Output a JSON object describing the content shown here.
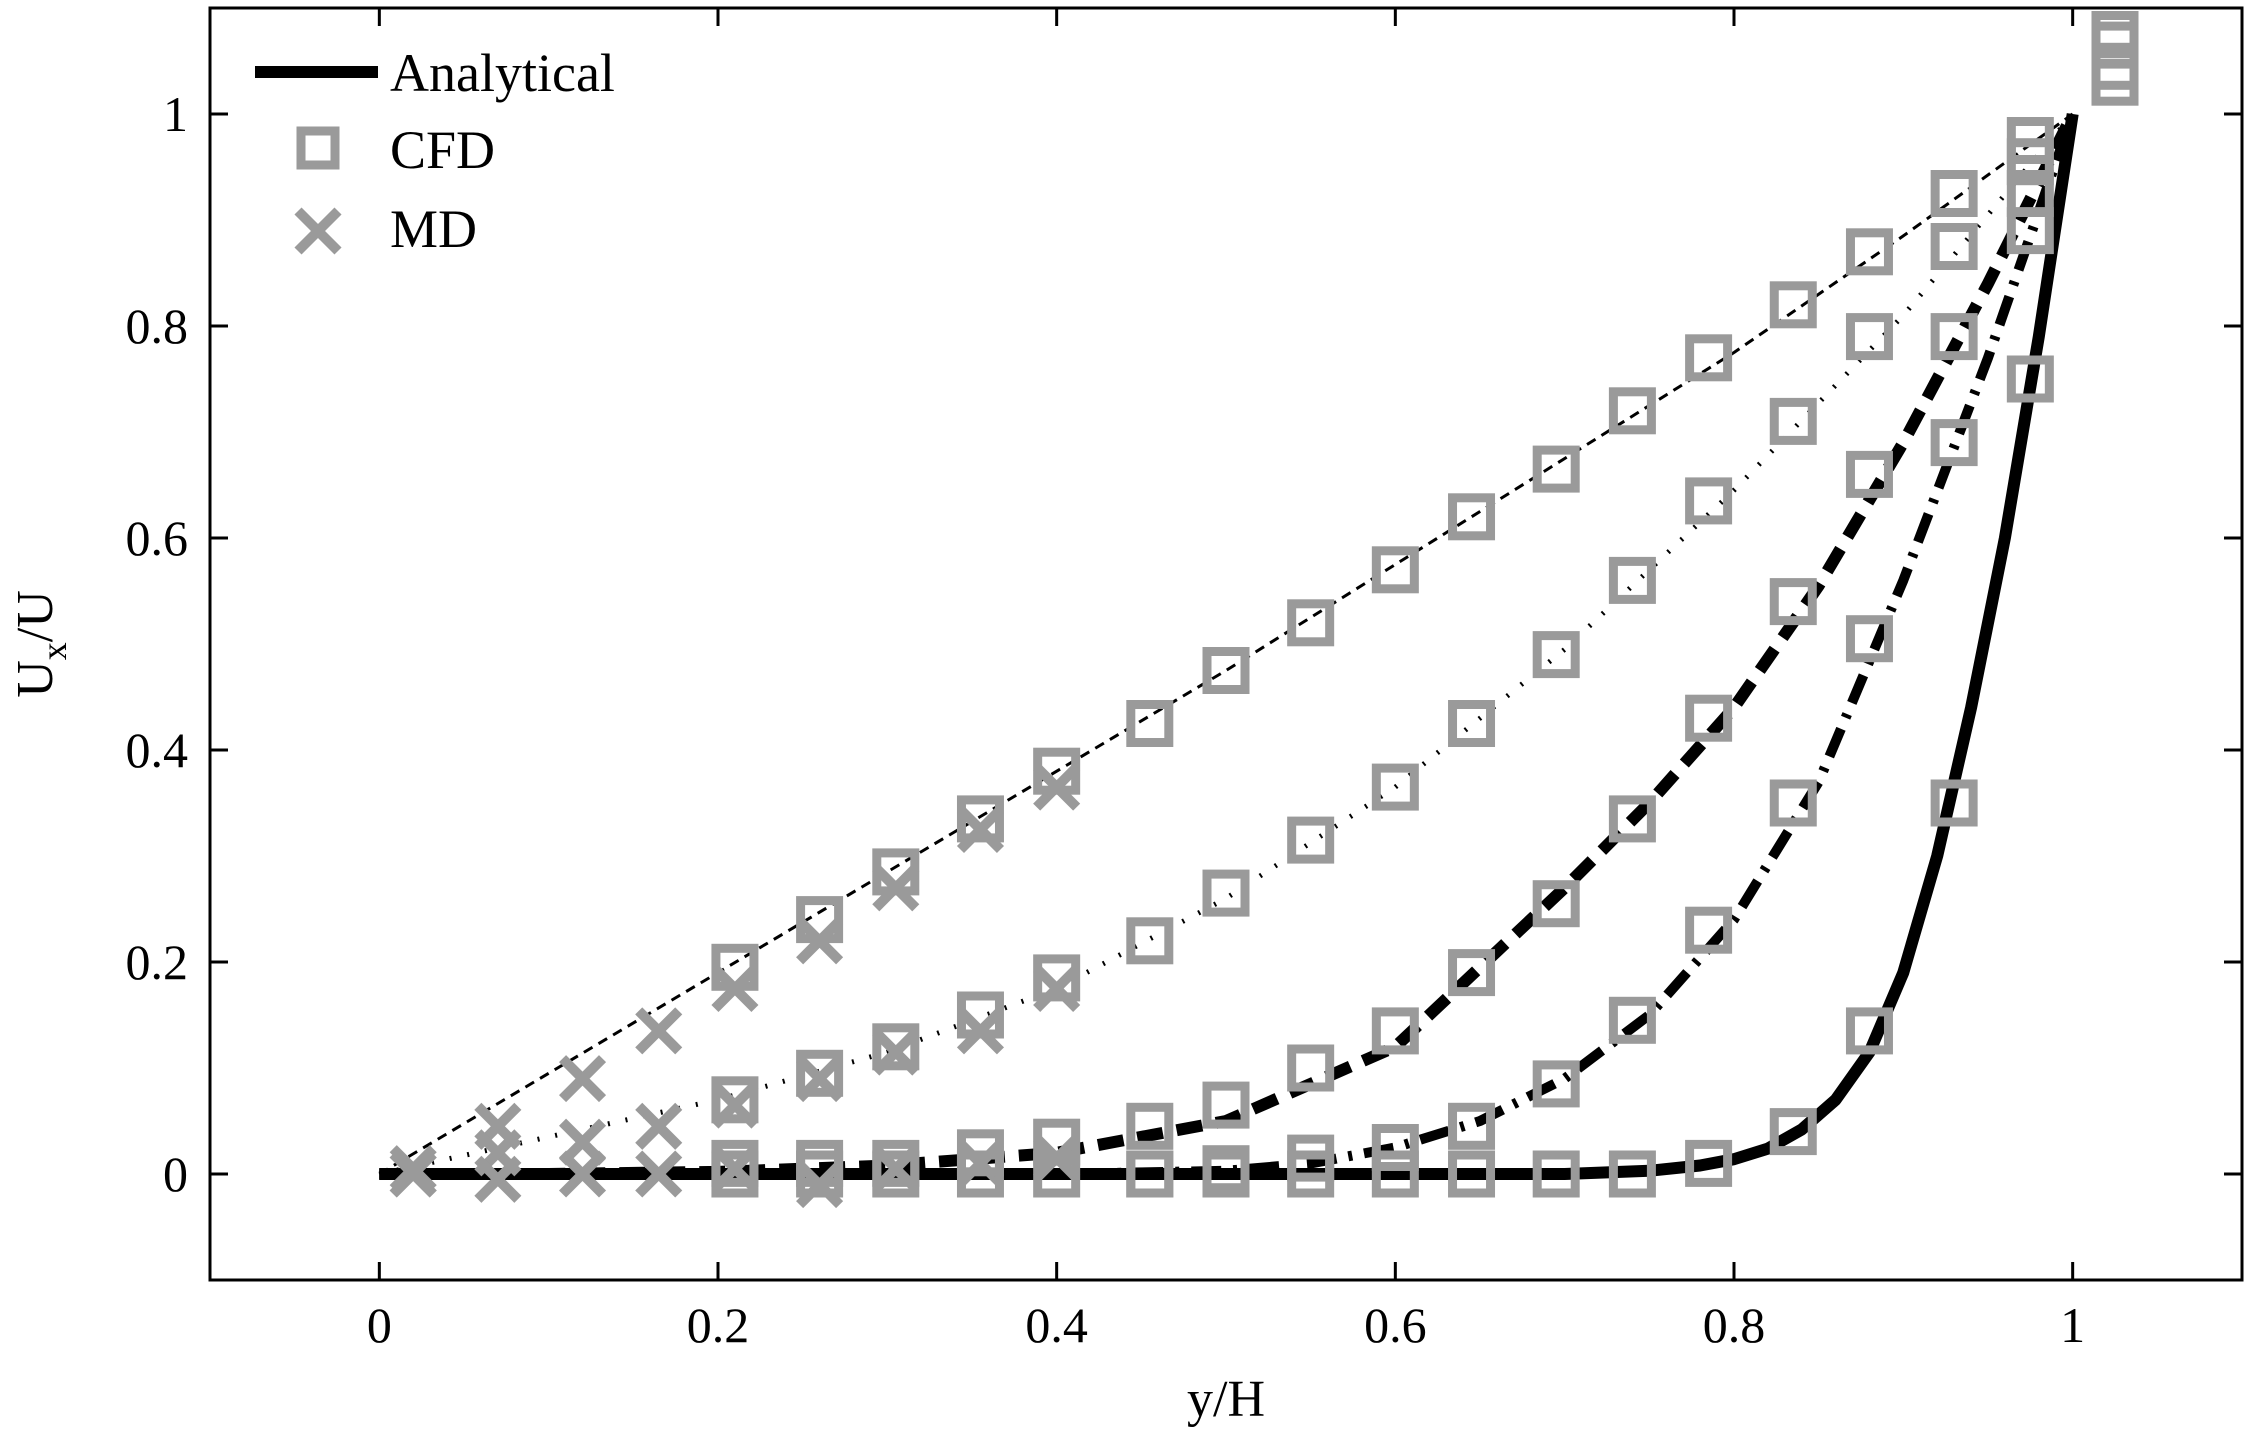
{
  "chart_data": {
    "type": "line",
    "xlabel": "y/H",
    "ylabel_main": "U",
    "ylabel_sub": "x",
    "ylabel_tail": "/U",
    "xlim": [
      -0.1,
      1.1
    ],
    "ylim": [
      -0.1,
      1.1
    ],
    "xticks": [
      0,
      0.2,
      0.4,
      0.6,
      0.8,
      1
    ],
    "xtick_labels": [
      "0",
      "0.2",
      "0.4",
      "0.6",
      "0.8",
      "1"
    ],
    "yticks": [
      0,
      0.2,
      0.4,
      0.6,
      0.8,
      1
    ],
    "ytick_labels": [
      "0",
      "0.2",
      "0.4",
      "0.6",
      "0.8",
      "1"
    ],
    "grid": false,
    "legend": {
      "placement": "top-left",
      "entries": [
        {
          "label": "Analytical",
          "marker": "line",
          "color": "#000000"
        },
        {
          "label": "CFD",
          "marker": "square",
          "color": "#9a9a9a"
        },
        {
          "label": "MD",
          "marker": "x",
          "color": "#9a9a9a"
        }
      ]
    },
    "analytical_curves": [
      {
        "style": "thin-dashed",
        "x": [
          0,
          0.1,
          0.2,
          0.3,
          0.4,
          0.5,
          0.6,
          0.7,
          0.8,
          0.9,
          1.0
        ],
        "y": [
          0,
          0.095,
          0.19,
          0.285,
          0.38,
          0.475,
          0.575,
          0.675,
          0.775,
          0.885,
          1.0
        ]
      },
      {
        "style": "dotted",
        "x": [
          0,
          0.1,
          0.2,
          0.3,
          0.4,
          0.5,
          0.6,
          0.7,
          0.8,
          0.9,
          1.0
        ],
        "y": [
          0,
          0.035,
          0.07,
          0.115,
          0.175,
          0.26,
          0.365,
          0.495,
          0.645,
          0.81,
          1.0
        ]
      },
      {
        "style": "thick-dashed",
        "x": [
          0,
          0.1,
          0.2,
          0.3,
          0.4,
          0.5,
          0.6,
          0.7,
          0.75,
          0.8,
          0.85,
          0.9,
          0.95,
          1.0
        ],
        "y": [
          0,
          0.0,
          0.002,
          0.008,
          0.02,
          0.05,
          0.12,
          0.27,
          0.35,
          0.44,
          0.555,
          0.69,
          0.84,
          1.0
        ]
      },
      {
        "style": "thick-dash-dot",
        "x": [
          0,
          0.2,
          0.4,
          0.5,
          0.55,
          0.6,
          0.65,
          0.7,
          0.75,
          0.8,
          0.85,
          0.9,
          0.95,
          1.0
        ],
        "y": [
          0,
          0,
          0,
          0.003,
          0.01,
          0.025,
          0.05,
          0.09,
          0.15,
          0.24,
          0.37,
          0.56,
          0.77,
          1.0
        ]
      },
      {
        "style": "solid",
        "x": [
          0,
          0.2,
          0.4,
          0.6,
          0.7,
          0.75,
          0.78,
          0.8,
          0.82,
          0.84,
          0.86,
          0.88,
          0.9,
          0.92,
          0.94,
          0.96,
          0.98,
          1.0
        ],
        "y": [
          0,
          0,
          0,
          0,
          0.0,
          0.003,
          0.008,
          0.014,
          0.024,
          0.042,
          0.07,
          0.115,
          0.19,
          0.3,
          0.44,
          0.6,
          0.79,
          1.0
        ]
      }
    ],
    "cfd_points": [
      [
        0.21,
        0.195
      ],
      [
        0.26,
        0.24
      ],
      [
        0.305,
        0.285
      ],
      [
        0.355,
        0.335
      ],
      [
        0.4,
        0.38
      ],
      [
        0.455,
        0.425
      ],
      [
        0.5,
        0.475
      ],
      [
        0.55,
        0.52
      ],
      [
        0.6,
        0.57
      ],
      [
        0.645,
        0.62
      ],
      [
        0.695,
        0.665
      ],
      [
        0.74,
        0.72
      ],
      [
        0.785,
        0.77
      ],
      [
        0.835,
        0.82
      ],
      [
        0.88,
        0.87
      ],
      [
        0.93,
        0.925
      ],
      [
        0.975,
        0.975
      ],
      [
        1.025,
        1.075
      ],
      [
        0.21,
        0.07
      ],
      [
        0.26,
        0.095
      ],
      [
        0.305,
        0.12
      ],
      [
        0.355,
        0.15
      ],
      [
        0.4,
        0.185
      ],
      [
        0.455,
        0.22
      ],
      [
        0.5,
        0.265
      ],
      [
        0.55,
        0.315
      ],
      [
        0.6,
        0.365
      ],
      [
        0.645,
        0.425
      ],
      [
        0.695,
        0.49
      ],
      [
        0.74,
        0.56
      ],
      [
        0.785,
        0.635
      ],
      [
        0.835,
        0.71
      ],
      [
        0.88,
        0.79
      ],
      [
        0.93,
        0.875
      ],
      [
        0.975,
        0.955
      ],
      [
        1.025,
        1.045
      ],
      [
        0.21,
        0.01
      ],
      [
        0.26,
        0.01
      ],
      [
        0.305,
        0.01
      ],
      [
        0.355,
        0.02
      ],
      [
        0.4,
        0.03
      ],
      [
        0.455,
        0.045
      ],
      [
        0.5,
        0.065
      ],
      [
        0.55,
        0.1
      ],
      [
        0.6,
        0.135
      ],
      [
        0.645,
        0.19
      ],
      [
        0.695,
        0.255
      ],
      [
        0.74,
        0.335
      ],
      [
        0.785,
        0.43
      ],
      [
        0.835,
        0.54
      ],
      [
        0.88,
        0.66
      ],
      [
        0.93,
        0.79
      ],
      [
        0.975,
        0.925
      ],
      [
        1.025,
        1.03
      ],
      [
        0.21,
        0.0
      ],
      [
        0.26,
        0.0
      ],
      [
        0.305,
        0.0
      ],
      [
        0.355,
        0.0
      ],
      [
        0.4,
        0.0
      ],
      [
        0.455,
        0.0
      ],
      [
        0.5,
        0.005
      ],
      [
        0.55,
        0.015
      ],
      [
        0.6,
        0.025
      ],
      [
        0.645,
        0.045
      ],
      [
        0.695,
        0.085
      ],
      [
        0.74,
        0.145
      ],
      [
        0.785,
        0.23
      ],
      [
        0.835,
        0.35
      ],
      [
        0.88,
        0.505
      ],
      [
        0.93,
        0.69
      ],
      [
        0.975,
        0.89
      ],
      [
        0.455,
        0.0
      ],
      [
        0.5,
        0.0
      ],
      [
        0.55,
        0.0
      ],
      [
        0.6,
        0.0
      ],
      [
        0.645,
        0.0
      ],
      [
        0.695,
        0.0
      ],
      [
        0.74,
        0.0
      ],
      [
        0.785,
        0.01
      ],
      [
        0.835,
        0.04
      ],
      [
        0.88,
        0.135
      ],
      [
        0.93,
        0.35
      ],
      [
        0.975,
        0.75
      ],
      [
        1.025,
        1.065
      ]
    ],
    "md_points": [
      [
        0.02,
        0.005
      ],
      [
        0.07,
        0.045
      ],
      [
        0.12,
        0.09
      ],
      [
        0.165,
        0.135
      ],
      [
        0.21,
        0.175
      ],
      [
        0.26,
        0.22
      ],
      [
        0.305,
        0.27
      ],
      [
        0.355,
        0.325
      ],
      [
        0.4,
        0.365
      ],
      [
        0.02,
        0.0
      ],
      [
        0.07,
        0.02
      ],
      [
        0.12,
        0.03
      ],
      [
        0.165,
        0.045
      ],
      [
        0.21,
        0.065
      ],
      [
        0.26,
        0.09
      ],
      [
        0.305,
        0.115
      ],
      [
        0.355,
        0.135
      ],
      [
        0.4,
        0.175
      ],
      [
        0.02,
        0.0
      ],
      [
        0.07,
        -0.005
      ],
      [
        0.12,
        0.0
      ],
      [
        0.165,
        0.0
      ],
      [
        0.21,
        0.005
      ],
      [
        0.26,
        -0.01
      ],
      [
        0.305,
        0.005
      ],
      [
        0.355,
        0.01
      ],
      [
        0.4,
        0.015
      ]
    ]
  }
}
